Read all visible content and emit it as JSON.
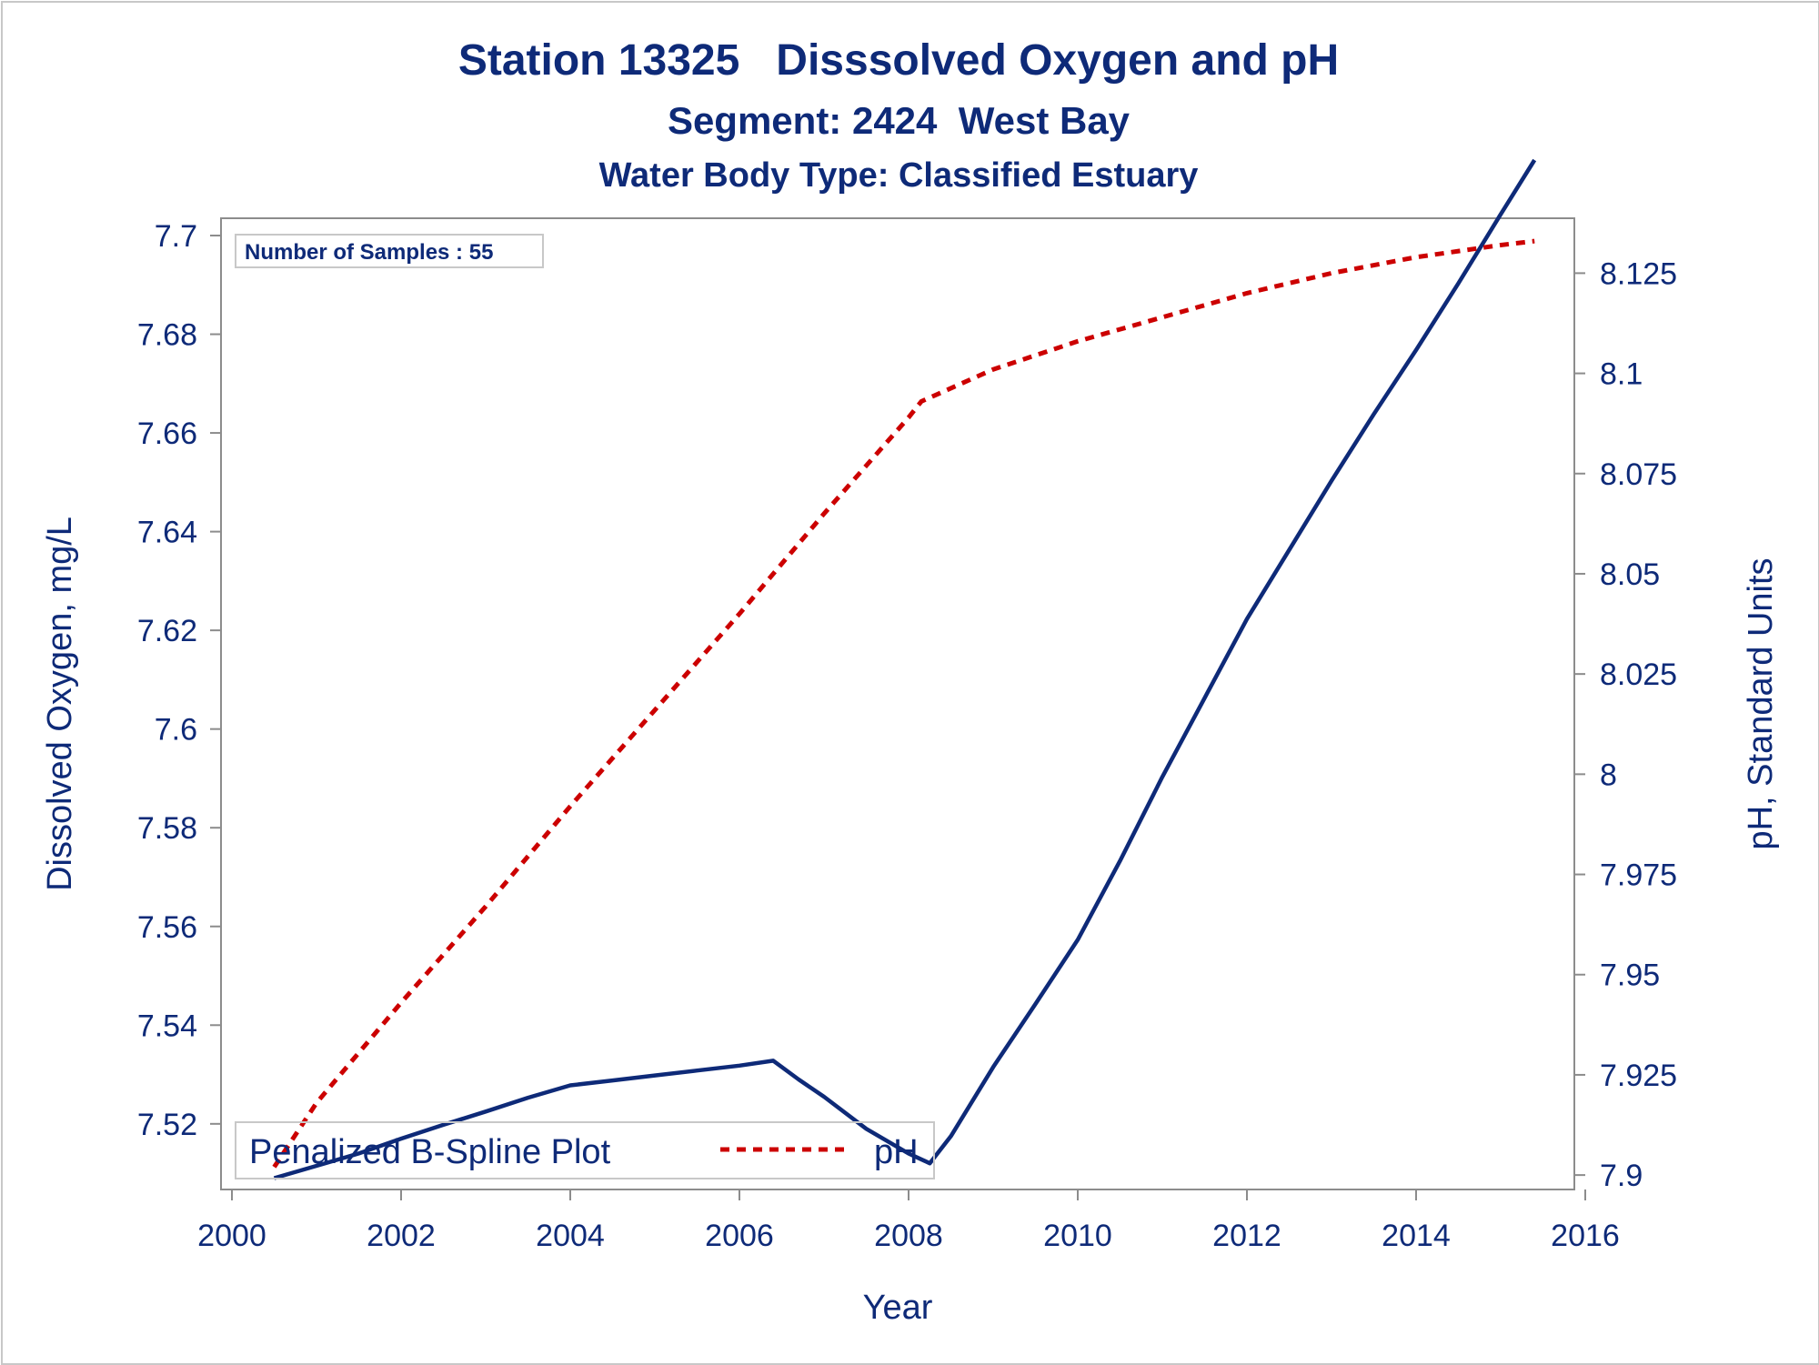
{
  "chart_data": {
    "type": "line",
    "title": "Station 13325   Disssolved Oxygen and pH",
    "subtitle": "Segment: 2424  West Bay",
    "subtitle2": "Water Body Type: Classified Estuary",
    "xlabel": "Year",
    "ylabel": "Dissolved Oxygen, mg/L",
    "y2label": "pH, Standard Units",
    "xlim": [
      2000,
      2016
    ],
    "ylim": [
      7.5067,
      7.7035
    ],
    "y2lim": [
      7.8964,
      8.1387
    ],
    "xticks": [
      "2000",
      "2002",
      "2004",
      "2006",
      "2008",
      "2010",
      "2012",
      "2014",
      "2016"
    ],
    "yticks": [
      "7.52",
      "7.54",
      "7.56",
      "7.58",
      "7.6",
      "7.62",
      "7.64",
      "7.66",
      "7.68",
      "7.7"
    ],
    "y2ticks": [
      "7.9",
      "7.925",
      "7.95",
      "7.975",
      "8",
      "8.025",
      "8.05",
      "8.075",
      "8.1",
      "8.125"
    ],
    "inset": "Number of Samples : 55",
    "legend_position": "bottom-left",
    "series": [
      {
        "name": "Penalized B-Spline Plot",
        "axis": "left",
        "color": "#0e2a78",
        "style": "solid",
        "x": [
          2000.5,
          2001.0,
          2001.5,
          2002.0,
          2002.5,
          2003.0,
          2003.5,
          2004.0,
          2004.5,
          2005.0,
          2005.5,
          2006.0,
          2006.4,
          2006.7,
          2007.0,
          2007.5,
          2008.0,
          2008.25,
          2008.5,
          2009.0,
          2009.5,
          2010.0,
          2010.5,
          2011.0,
          2011.5,
          2012.0,
          2012.5,
          2013.0,
          2013.5,
          2014.0,
          2014.5,
          2015.0,
          2015.4
        ],
        "y": [
          7.509,
          7.5115,
          7.514,
          7.517,
          7.5198,
          7.5225,
          7.5253,
          7.5278,
          7.5288,
          7.5298,
          7.5308,
          7.5318,
          7.5328,
          7.529,
          7.5255,
          7.519,
          7.514,
          7.512,
          7.5175,
          7.5315,
          7.5443,
          7.5573,
          7.5733,
          7.5903,
          7.6063,
          7.6223,
          7.6363,
          7.6503,
          7.6638,
          7.6768,
          7.6903,
          7.7043,
          7.7153
        ]
      },
      {
        "name": "pH",
        "axis": "right",
        "color": "#cc0000",
        "style": "dashed",
        "x": [
          2000.5,
          2001.0,
          2002.0,
          2003.0,
          2004.0,
          2005.0,
          2006.0,
          2007.0,
          2008.0,
          2008.15,
          2009.0,
          2010.0,
          2011.0,
          2012.0,
          2013.0,
          2014.0,
          2015.0,
          2015.4
        ],
        "y": [
          7.902,
          7.918,
          7.943,
          7.967,
          7.992,
          8.016,
          8.04,
          8.065,
          8.089,
          8.093,
          8.101,
          8.108,
          8.114,
          8.12,
          8.125,
          8.129,
          8.132,
          8.133
        ]
      }
    ]
  }
}
